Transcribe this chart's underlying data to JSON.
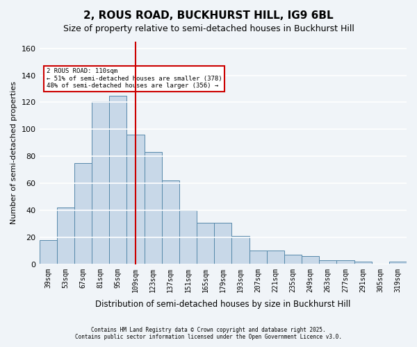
{
  "title": "2, ROUS ROAD, BUCKHURST HILL, IG9 6BL",
  "subtitle": "Size of property relative to semi-detached houses in Buckhurst Hill",
  "xlabel": "Distribution of semi-detached houses by size in Buckhurst Hill",
  "ylabel": "Number of semi-detached properties",
  "footnote1": "Contains HM Land Registry data © Crown copyright and database right 2025.",
  "footnote2": "Contains public sector information licensed under the Open Government Licence v3.0.",
  "categories": [
    "39sqm",
    "53sqm",
    "67sqm",
    "81sqm",
    "95sqm",
    "109sqm",
    "123sqm",
    "137sqm",
    "151sqm",
    "165sqm",
    "179sqm",
    "193sqm",
    "207sqm",
    "221sqm",
    "235sqm",
    "249sqm",
    "263sqm",
    "277sqm",
    "291sqm",
    "305sqm",
    "319sqm"
  ],
  "values": [
    18,
    42,
    75,
    121,
    125,
    96,
    83,
    62,
    40,
    31,
    31,
    21,
    10,
    10,
    7,
    6,
    3,
    3,
    2,
    0,
    2
  ],
  "bar_color": "#c8d8e8",
  "bar_edge_color": "#5588aa",
  "vline_x": 5.0,
  "vline_color": "#cc0000",
  "annotation_title": "2 ROUS ROAD: 110sqm",
  "annotation_line1": "← 51% of semi-detached houses are smaller (378)",
  "annotation_line2": "48% of semi-detached houses are larger (356) →",
  "annotation_box_color": "#cc0000",
  "ylim": [
    0,
    165
  ],
  "yticks": [
    0,
    20,
    40,
    60,
    80,
    100,
    120,
    140,
    160
  ],
  "background_color": "#f0f4f8",
  "grid_color": "#ffffff",
  "title_fontsize": 11,
  "subtitle_fontsize": 9,
  "axis_label_fontsize": 8,
  "tick_fontsize": 7
}
